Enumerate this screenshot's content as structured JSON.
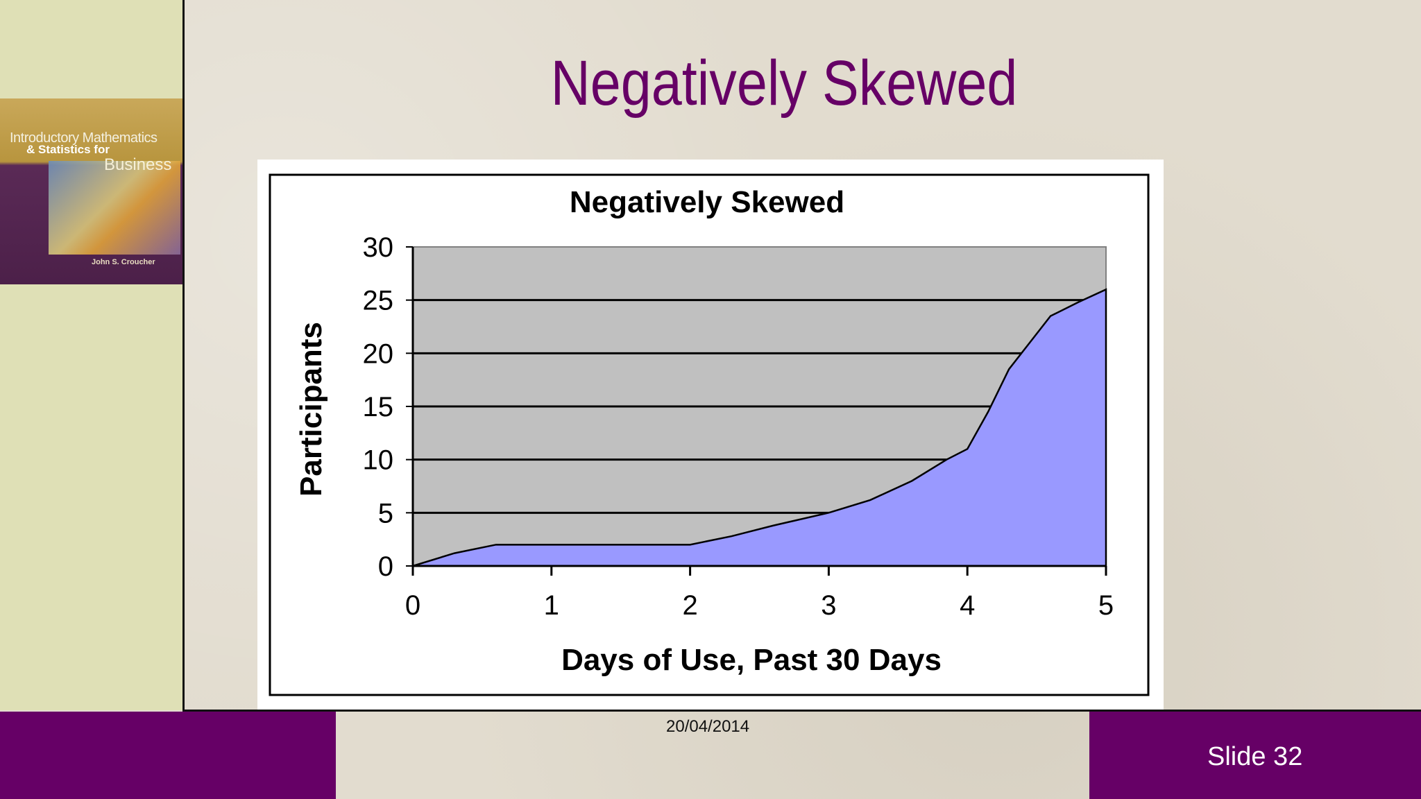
{
  "slide": {
    "title": "Negatively Skewed",
    "date": "20/04/2014",
    "slide_number": "Slide 32",
    "book": {
      "line1": "Introductory Mathematics",
      "line2": "& Statistics for",
      "line3": "Business",
      "author": "John S. Croucher"
    },
    "colors": {
      "accent": "#660066",
      "left_panel": "#dfe0b6",
      "area_fill": "#9999ff",
      "plot_bg": "#c0c0c0"
    }
  },
  "chart_data": {
    "type": "area",
    "title": "Negatively Skewed",
    "xlabel": "Days of Use, Past 30 Days",
    "ylabel": "Participants",
    "xlim": [
      0,
      5
    ],
    "ylim": [
      0,
      30
    ],
    "xticks": [
      "0",
      "1",
      "2",
      "3",
      "4",
      "5"
    ],
    "yticks": [
      "0",
      "5",
      "10",
      "15",
      "20",
      "25",
      "30"
    ],
    "grid": true,
    "series": [
      {
        "x": [
          0,
          0.3,
          0.6,
          1,
          1.5,
          2,
          2.3,
          2.6,
          3,
          3.3,
          3.6,
          3.85,
          4,
          4.15,
          4.3,
          4.45,
          4.6,
          4.8,
          5
        ],
        "values": [
          0,
          1.2,
          2,
          2,
          2,
          2,
          2.8,
          3.8,
          5,
          6.2,
          8,
          10,
          11,
          14.5,
          18.5,
          21,
          23.5,
          24.8,
          26
        ]
      }
    ]
  }
}
